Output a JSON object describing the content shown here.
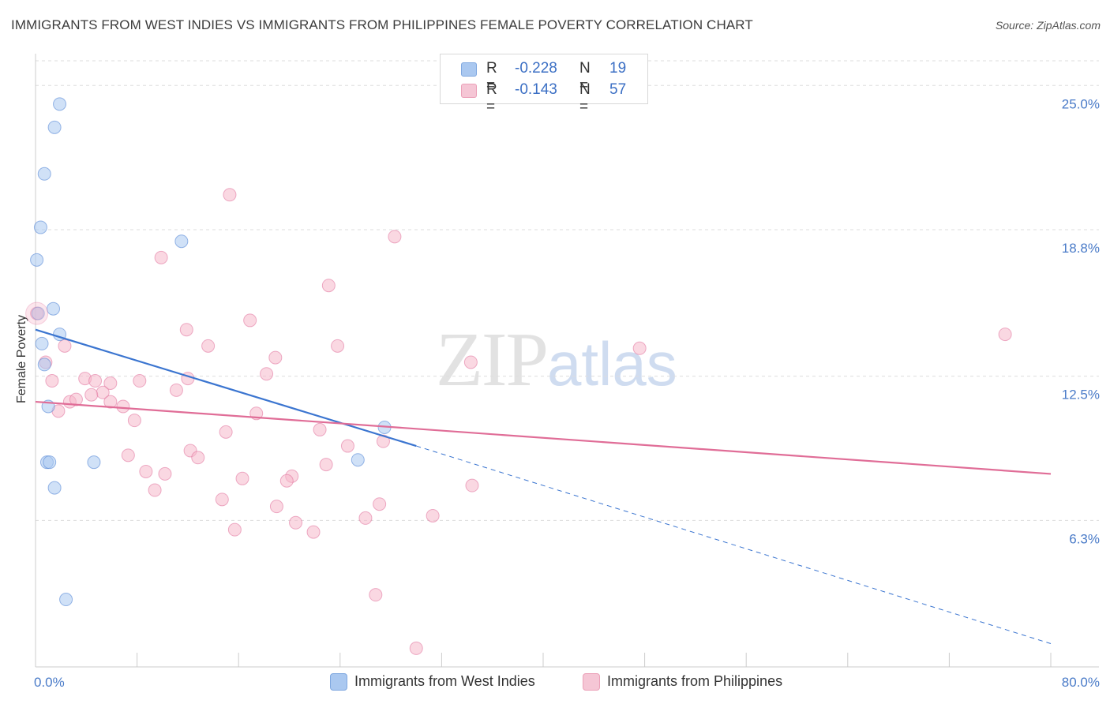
{
  "header": {
    "title": "IMMIGRANTS FROM WEST INDIES VS IMMIGRANTS FROM PHILIPPINES FEMALE POVERTY CORRELATION CHART",
    "source": "Source: ZipAtlas.com"
  },
  "watermark": {
    "zip": "ZIP",
    "atlas": "atlas"
  },
  "legend": {
    "r_label": "R =",
    "n_label": "N =",
    "series": [
      {
        "r": "-0.228",
        "n": "19",
        "color": "#aac8f0"
      },
      {
        "r": "-0.143",
        "n": "57",
        "color": "#f5b8cb"
      }
    ]
  },
  "bottom_legend": {
    "items": [
      {
        "label": "Immigrants from West Indies",
        "color": "#aac8f0"
      },
      {
        "label": "Immigrants from Philippines",
        "color": "#f5b8cb"
      }
    ]
  },
  "chart_data": {
    "type": "scatter",
    "ylabel": "Female Poverty",
    "xlim": [
      0,
      80
    ],
    "ylim": [
      0,
      26.3
    ],
    "y_ticks": [
      {
        "value": 6.3,
        "label": "6.3%"
      },
      {
        "value": 12.5,
        "label": "12.5%"
      },
      {
        "value": 18.8,
        "label": "18.8%"
      },
      {
        "value": 25.0,
        "label": "25.0%"
      }
    ],
    "x_tick_labels": {
      "min": "0.0%",
      "max": "80.0%"
    },
    "grid": "horizontal dashed",
    "series": [
      {
        "name": "Immigrants from West Indies",
        "color": "#4a7fd4",
        "fill": "#aac8f0",
        "points": [
          [
            1.9,
            24.2
          ],
          [
            1.5,
            23.2
          ],
          [
            0.7,
            21.2
          ],
          [
            0.4,
            18.9
          ],
          [
            11.5,
            18.3
          ],
          [
            0.1,
            17.5
          ],
          [
            1.4,
            15.4
          ],
          [
            0.2,
            15.2
          ],
          [
            1.9,
            14.3
          ],
          [
            0.5,
            13.9
          ],
          [
            0.7,
            13.0
          ],
          [
            1.0,
            11.2
          ],
          [
            27.5,
            10.3
          ],
          [
            0.9,
            8.8
          ],
          [
            1.1,
            8.8
          ],
          [
            4.6,
            8.8
          ],
          [
            25.4,
            8.9
          ],
          [
            1.5,
            7.7
          ],
          [
            2.4,
            2.9
          ]
        ],
        "trend": {
          "x0": 0,
          "y0": 14.5,
          "x1": 30,
          "y1": 9.5,
          "dashed_to_x": 80,
          "dashed_to_y": 1.0
        }
      },
      {
        "name": "Immigrants from Philippines",
        "color": "#e0709a",
        "fill": "#f5b8cb",
        "points": [
          [
            0.1,
            15.2
          ],
          [
            15.3,
            20.3
          ],
          [
            28.3,
            18.5
          ],
          [
            9.9,
            17.6
          ],
          [
            23.1,
            16.4
          ],
          [
            16.9,
            14.9
          ],
          [
            11.9,
            14.5
          ],
          [
            23.8,
            13.8
          ],
          [
            76.4,
            14.3
          ],
          [
            47.6,
            13.7
          ],
          [
            2.3,
            13.8
          ],
          [
            13.6,
            13.8
          ],
          [
            18.9,
            13.3
          ],
          [
            34.3,
            13.1
          ],
          [
            0.8,
            13.1
          ],
          [
            18.2,
            12.6
          ],
          [
            12.0,
            12.4
          ],
          [
            8.2,
            12.3
          ],
          [
            1.3,
            12.3
          ],
          [
            3.9,
            12.4
          ],
          [
            4.7,
            12.3
          ],
          [
            5.9,
            12.2
          ],
          [
            11.1,
            11.9
          ],
          [
            5.3,
            11.8
          ],
          [
            4.4,
            11.7
          ],
          [
            2.7,
            11.4
          ],
          [
            5.9,
            11.4
          ],
          [
            6.9,
            11.2
          ],
          [
            3.2,
            11.5
          ],
          [
            1.8,
            11.0
          ],
          [
            17.4,
            10.9
          ],
          [
            7.8,
            10.6
          ],
          [
            22.4,
            10.2
          ],
          [
            15.0,
            10.1
          ],
          [
            27.4,
            9.7
          ],
          [
            24.6,
            9.5
          ],
          [
            12.2,
            9.3
          ],
          [
            7.3,
            9.1
          ],
          [
            12.8,
            9.0
          ],
          [
            22.9,
            8.7
          ],
          [
            8.7,
            8.4
          ],
          [
            10.2,
            8.3
          ],
          [
            16.3,
            8.1
          ],
          [
            20.2,
            8.2
          ],
          [
            19.8,
            8.0
          ],
          [
            34.4,
            7.8
          ],
          [
            9.4,
            7.6
          ],
          [
            14.7,
            7.2
          ],
          [
            19.0,
            6.9
          ],
          [
            27.1,
            7.0
          ],
          [
            31.3,
            6.5
          ],
          [
            26.0,
            6.4
          ],
          [
            20.5,
            6.2
          ],
          [
            15.7,
            5.9
          ],
          [
            21.9,
            5.8
          ],
          [
            26.8,
            3.1
          ],
          [
            30.0,
            0.8
          ]
        ],
        "trend": {
          "x0": 0,
          "y0": 11.4,
          "x1": 80,
          "y1": 8.3
        }
      }
    ]
  }
}
